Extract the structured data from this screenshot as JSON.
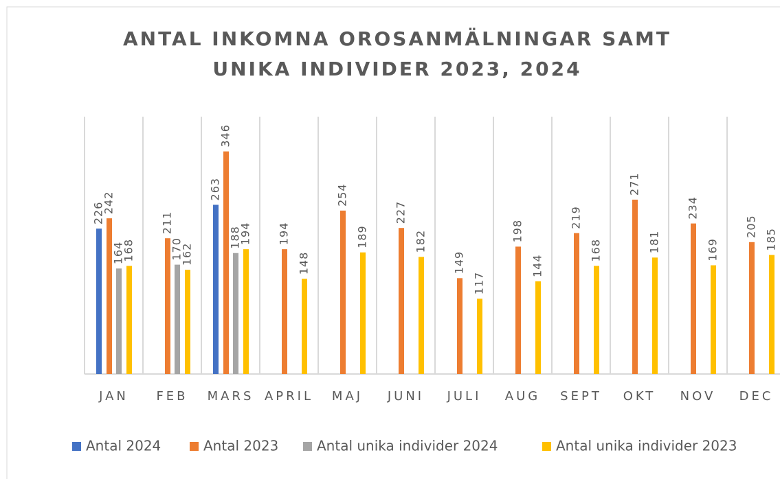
{
  "chart_data": {
    "type": "bar",
    "title": [
      "ANTAL INKOMNA OROSANMÄLNINGAR SAMT",
      "UNIKA INDIVIDER 2023, 2024"
    ],
    "categories": [
      "JAN",
      "FEB",
      "MARS",
      "APRIL",
      "MAJ",
      "JUNI",
      "JULI",
      "AUG",
      "SEPT",
      "OKT",
      "NOV",
      "DEC"
    ],
    "series": [
      {
        "name": "Antal 2024",
        "color": "#4472c4",
        "values": [
          226,
          null,
          263,
          null,
          null,
          null,
          null,
          null,
          null,
          null,
          null,
          null
        ]
      },
      {
        "name": "Antal 2023",
        "color": "#ed7d31",
        "values": [
          242,
          211,
          346,
          194,
          254,
          227,
          149,
          198,
          219,
          271,
          234,
          205
        ]
      },
      {
        "name": "Antal unika individer 2024",
        "color": "#a5a5a5",
        "values": [
          164,
          170,
          188,
          null,
          null,
          null,
          null,
          null,
          null,
          null,
          null,
          null
        ]
      },
      {
        "name": "Antal unika individer 2023",
        "color": "#ffc000",
        "values": [
          168,
          162,
          194,
          148,
          189,
          182,
          117,
          144,
          168,
          181,
          169,
          185
        ]
      }
    ],
    "ylim": [
      0,
      400
    ],
    "legend": "bottom"
  }
}
